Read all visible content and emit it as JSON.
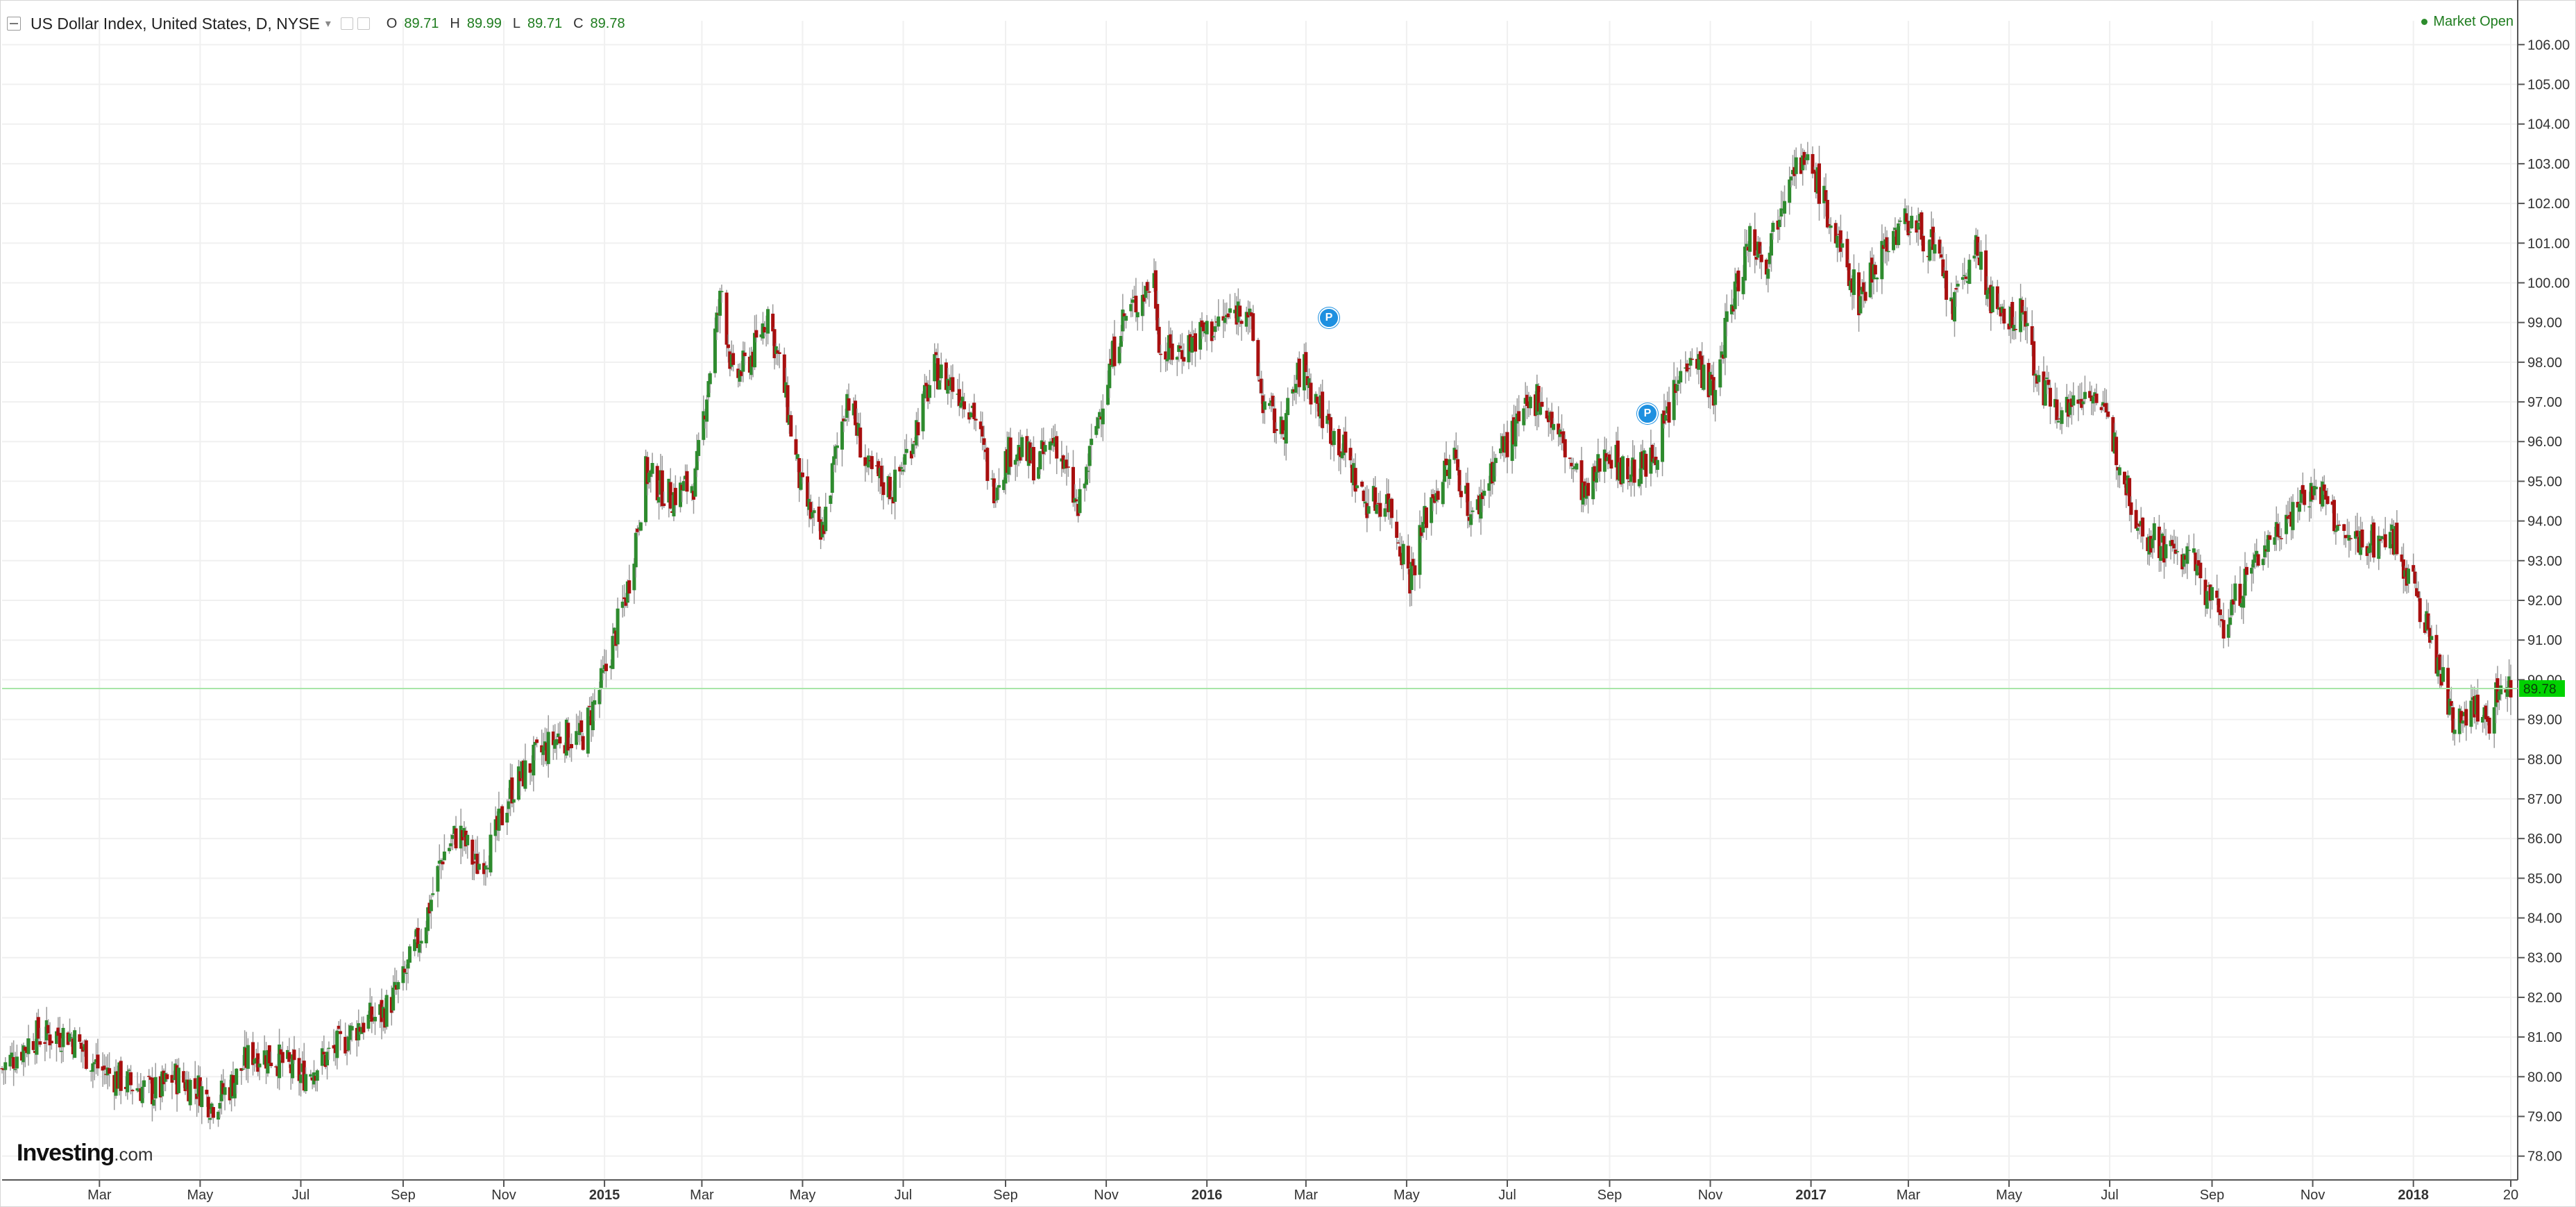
{
  "header": {
    "title": "US Dollar Index, United States, D, NYSE",
    "ohlc": [
      {
        "label": "O",
        "value": "89.71"
      },
      {
        "label": "H",
        "value": "89.99"
      },
      {
        "label": "L",
        "value": "89.71"
      },
      {
        "label": "C",
        "value": "89.78"
      }
    ],
    "market_status": "Market Open"
  },
  "brand": {
    "name": "Investing",
    "suffix": ".com"
  },
  "markers": [
    "P",
    "P"
  ],
  "colors": {
    "up": "#2e8b2e",
    "down": "#a80f0f",
    "wick": "#9a9a9a",
    "price_line": "#a8e6a8",
    "price_tag": "#00d200",
    "grid": "#f0f0f0",
    "marker": "#1e90e0"
  },
  "chart_data": {
    "type": "candlestick",
    "symbol": "US Dollar Index",
    "interval": "D",
    "exchange": "NYSE",
    "ylim": [
      77.4,
      106.6
    ],
    "yticks": [
      "78.00",
      "79.00",
      "80.00",
      "81.00",
      "82.00",
      "83.00",
      "84.00",
      "85.00",
      "86.00",
      "87.00",
      "88.00",
      "89.00",
      "90.00",
      "91.00",
      "92.00",
      "93.00",
      "94.00",
      "95.00",
      "96.00",
      "97.00",
      "98.00",
      "99.00",
      "100.00",
      "101.00",
      "102.00",
      "103.00",
      "104.00",
      "105.00",
      "106.00"
    ],
    "last_price": 89.78,
    "last_price_label": "89.78",
    "xticks": [
      {
        "label": "Mar",
        "date": "2014-03-01",
        "bold": false
      },
      {
        "label": "May",
        "date": "2014-05-01",
        "bold": false
      },
      {
        "label": "Jul",
        "date": "2014-07-01",
        "bold": false
      },
      {
        "label": "Sep",
        "date": "2014-09-01",
        "bold": false
      },
      {
        "label": "Nov",
        "date": "2014-11-01",
        "bold": false
      },
      {
        "label": "2015",
        "date": "2015-01-01",
        "bold": true
      },
      {
        "label": "Mar",
        "date": "2015-03-01",
        "bold": false
      },
      {
        "label": "May",
        "date": "2015-05-01",
        "bold": false
      },
      {
        "label": "Jul",
        "date": "2015-07-01",
        "bold": false
      },
      {
        "label": "Sep",
        "date": "2015-09-01",
        "bold": false
      },
      {
        "label": "Nov",
        "date": "2015-11-01",
        "bold": false
      },
      {
        "label": "2016",
        "date": "2016-01-01",
        "bold": true
      },
      {
        "label": "Mar",
        "date": "2016-03-01",
        "bold": false
      },
      {
        "label": "May",
        "date": "2016-05-01",
        "bold": false
      },
      {
        "label": "Jul",
        "date": "2016-07-01",
        "bold": false
      },
      {
        "label": "Sep",
        "date": "2016-09-01",
        "bold": false
      },
      {
        "label": "Nov",
        "date": "2016-11-01",
        "bold": false
      },
      {
        "label": "2017",
        "date": "2017-01-01",
        "bold": true
      },
      {
        "label": "Mar",
        "date": "2017-03-01",
        "bold": false
      },
      {
        "label": "May",
        "date": "2017-05-01",
        "bold": false
      },
      {
        "label": "Jul",
        "date": "2017-07-01",
        "bold": false
      },
      {
        "label": "Sep",
        "date": "2017-09-01",
        "bold": false
      },
      {
        "label": "Nov",
        "date": "2017-11-01",
        "bold": false
      },
      {
        "label": "2018",
        "date": "2018-01-01",
        "bold": true
      },
      {
        "label": "20",
        "date": "2018-03-01",
        "bold": false
      }
    ],
    "xrange": [
      "2014-01-01",
      "2018-03-01"
    ],
    "close_path": [
      [
        "2014-01-01",
        80.2
      ],
      [
        "2014-01-20",
        81.0
      ],
      [
        "2014-02-10",
        81.1
      ],
      [
        "2014-03-01",
        80.2
      ],
      [
        "2014-03-20",
        79.8
      ],
      [
        "2014-04-05",
        79.6
      ],
      [
        "2014-04-15",
        80.0
      ],
      [
        "2014-05-01",
        79.7
      ],
      [
        "2014-05-08",
        79.3
      ],
      [
        "2014-05-20",
        79.8
      ],
      [
        "2014-06-01",
        80.6
      ],
      [
        "2014-06-15",
        80.5
      ],
      [
        "2014-07-01",
        80.0
      ],
      [
        "2014-07-20",
        80.6
      ],
      [
        "2014-08-05",
        81.3
      ],
      [
        "2014-08-20",
        81.6
      ],
      [
        "2014-09-01",
        82.4
      ],
      [
        "2014-09-15",
        84.0
      ],
      [
        "2014-09-25",
        85.6
      ],
      [
        "2014-10-05",
        86.2
      ],
      [
        "2014-10-15",
        85.3
      ],
      [
        "2014-10-25",
        85.8
      ],
      [
        "2014-11-05",
        87.2
      ],
      [
        "2014-11-20",
        88.0
      ],
      [
        "2014-12-05",
        88.6
      ],
      [
        "2014-12-18",
        88.5
      ],
      [
        "2015-01-01",
        90.1
      ],
      [
        "2015-01-15",
        92.3
      ],
      [
        "2015-01-26",
        95.2
      ],
      [
        "2015-02-10",
        94.6
      ],
      [
        "2015-02-25",
        95.0
      ],
      [
        "2015-03-05",
        97.6
      ],
      [
        "2015-03-13",
        99.8
      ],
      [
        "2015-03-20",
        97.5
      ],
      [
        "2015-04-01",
        98.2
      ],
      [
        "2015-04-10",
        99.3
      ],
      [
        "2015-04-20",
        97.3
      ],
      [
        "2015-04-30",
        94.8
      ],
      [
        "2015-05-12",
        93.5
      ],
      [
        "2015-05-20",
        95.4
      ],
      [
        "2015-05-28",
        97.2
      ],
      [
        "2015-06-10",
        95.2
      ],
      [
        "2015-06-25",
        94.8
      ],
      [
        "2015-07-05",
        95.9
      ],
      [
        "2015-07-20",
        97.8
      ],
      [
        "2015-08-01",
        97.4
      ],
      [
        "2015-08-12",
        96.9
      ],
      [
        "2015-08-24",
        94.8
      ],
      [
        "2015-09-05",
        95.9
      ],
      [
        "2015-09-20",
        95.4
      ],
      [
        "2015-10-01",
        96.1
      ],
      [
        "2015-10-15",
        94.2
      ],
      [
        "2015-10-28",
        96.8
      ],
      [
        "2015-11-10",
        99.0
      ],
      [
        "2015-11-30",
        100.1
      ],
      [
        "2015-12-04",
        98.2
      ],
      [
        "2015-12-15",
        98.3
      ],
      [
        "2015-12-28",
        98.7
      ],
      [
        "2016-01-10",
        99.0
      ],
      [
        "2016-01-25",
        99.5
      ],
      [
        "2016-02-04",
        97.0
      ],
      [
        "2016-02-15",
        96.2
      ],
      [
        "2016-02-28",
        98.0
      ],
      [
        "2016-03-05",
        97.2
      ],
      [
        "2016-03-15",
        96.4
      ],
      [
        "2016-03-25",
        95.7
      ],
      [
        "2016-04-05",
        94.5
      ],
      [
        "2016-04-20",
        94.5
      ],
      [
        "2016-05-03",
        92.6
      ],
      [
        "2016-05-15",
        94.5
      ],
      [
        "2016-05-30",
        95.6
      ],
      [
        "2016-06-10",
        94.0
      ],
      [
        "2016-06-24",
        95.6
      ],
      [
        "2016-07-05",
        96.2
      ],
      [
        "2016-07-20",
        97.2
      ],
      [
        "2016-08-05",
        95.8
      ],
      [
        "2016-08-18",
        94.5
      ],
      [
        "2016-08-30",
        95.9
      ],
      [
        "2016-09-10",
        95.2
      ],
      [
        "2016-09-25",
        95.4
      ],
      [
        "2016-10-05",
        96.5
      ],
      [
        "2016-10-20",
        98.4
      ],
      [
        "2016-11-04",
        97.1
      ],
      [
        "2016-11-10",
        98.8
      ],
      [
        "2016-11-25",
        101.2
      ],
      [
        "2016-12-05",
        100.6
      ],
      [
        "2016-12-20",
        103.1
      ],
      [
        "2017-01-03",
        102.8
      ],
      [
        "2017-01-15",
        101.2
      ],
      [
        "2017-01-30",
        99.6
      ],
      [
        "2017-02-15",
        101.0
      ],
      [
        "2017-03-01",
        101.6
      ],
      [
        "2017-03-15",
        101.0
      ],
      [
        "2017-03-28",
        99.3
      ],
      [
        "2017-04-10",
        100.9
      ],
      [
        "2017-04-25",
        99.0
      ],
      [
        "2017-05-10",
        99.2
      ],
      [
        "2017-05-20",
        97.3
      ],
      [
        "2017-06-05",
        96.8
      ],
      [
        "2017-06-20",
        97.4
      ],
      [
        "2017-07-05",
        95.8
      ],
      [
        "2017-07-20",
        93.8
      ],
      [
        "2017-08-05",
        93.3
      ],
      [
        "2017-08-20",
        93.0
      ],
      [
        "2017-09-08",
        91.4
      ],
      [
        "2017-09-20",
        92.4
      ],
      [
        "2017-10-05",
        93.5
      ],
      [
        "2017-10-25",
        94.6
      ],
      [
        "2017-11-05",
        94.8
      ],
      [
        "2017-11-20",
        93.5
      ],
      [
        "2017-12-05",
        93.5
      ],
      [
        "2017-12-20",
        93.6
      ],
      [
        "2018-01-05",
        91.9
      ],
      [
        "2018-01-15",
        90.5
      ],
      [
        "2018-01-25",
        89.0
      ],
      [
        "2018-02-05",
        89.4
      ],
      [
        "2018-02-15",
        88.9
      ],
      [
        "2018-02-25",
        90.1
      ],
      [
        "2018-03-01",
        89.78
      ]
    ]
  }
}
